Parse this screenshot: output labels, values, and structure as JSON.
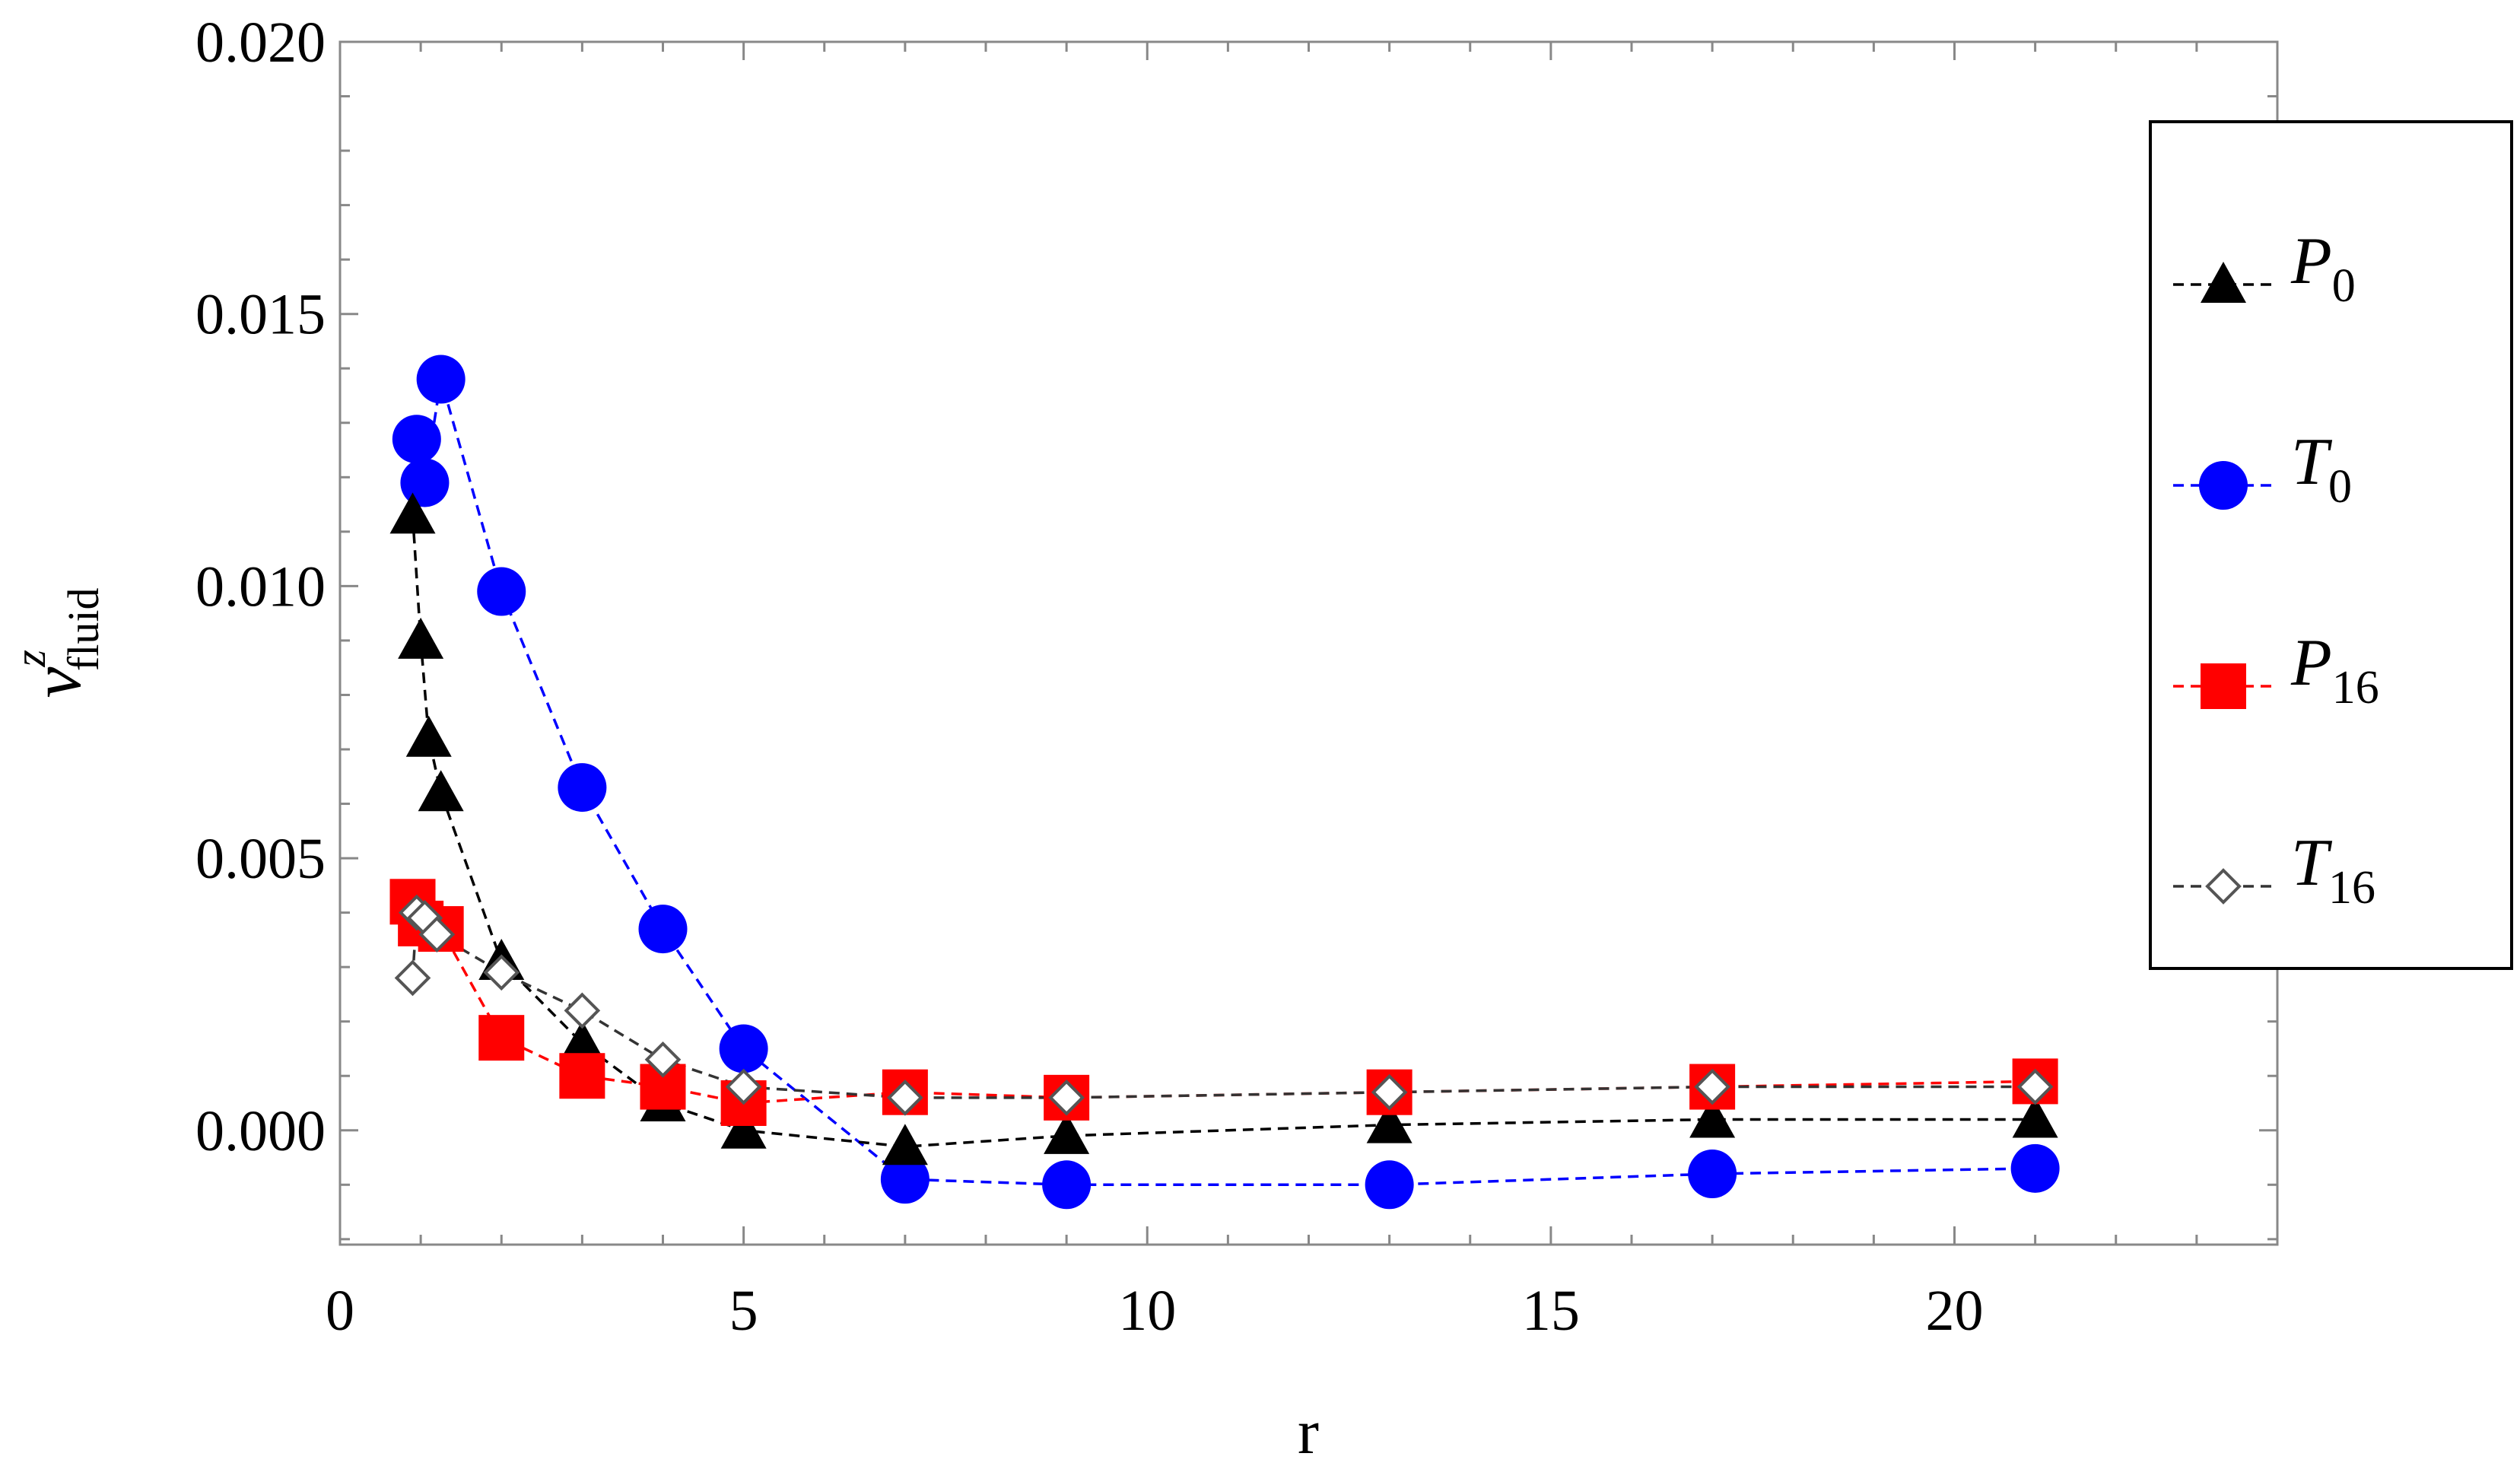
{
  "chart_data": {
    "type": "scatter",
    "xlabel": "r",
    "ylabel": {
      "base": "v",
      "superscript": "z",
      "subscript": "fluid"
    },
    "xlim": [
      0,
      24
    ],
    "ylim": [
      -0.0021,
      0.02
    ],
    "xticks": [
      0,
      5,
      10,
      15,
      20
    ],
    "yticks": [
      0.0,
      0.005,
      0.01,
      0.015,
      0.02
    ],
    "xtick_labels": [
      "0",
      "5",
      "10",
      "15",
      "20"
    ],
    "ytick_labels": [
      "0.000",
      "0.005",
      "0.010",
      "0.015",
      "0.020"
    ],
    "grid": false,
    "legend_position": "right",
    "series": [
      {
        "name": "P0",
        "label_base": "P",
        "label_sub": "0",
        "marker": "triangle",
        "color": "#000000",
        "line_color": "#000000",
        "x": [
          0.9,
          1.0,
          1.1,
          1.25,
          2,
          3,
          4,
          5,
          7,
          9,
          13,
          17,
          21
        ],
        "y": [
          0.0113,
          0.009,
          0.0072,
          0.0062,
          0.0031,
          0.0016,
          0.0005,
          0.0,
          -0.0003,
          -0.0001,
          0.0001,
          0.0002,
          0.0002
        ]
      },
      {
        "name": "T0",
        "label_base": "T",
        "label_sub": "0",
        "marker": "circle",
        "color": "#0000ff",
        "line_color": "#0000ff",
        "x": [
          0.95,
          1.05,
          1.25,
          2,
          3,
          4,
          5,
          7,
          9,
          13,
          17,
          21
        ],
        "y": [
          0.0127,
          0.0119,
          0.0138,
          0.0099,
          0.0063,
          0.0037,
          0.0015,
          -0.0009,
          -0.001,
          -0.001,
          -0.0008,
          -0.0007
        ]
      },
      {
        "name": "P16",
        "label_base": "P",
        "label_sub": "16",
        "marker": "square",
        "color": "#ff0000",
        "line_color": "#ff0000",
        "x": [
          0.9,
          1.0,
          1.25,
          2,
          3,
          4,
          5,
          7,
          9,
          13,
          17,
          21
        ],
        "y": [
          0.0042,
          0.0038,
          0.0037,
          0.0017,
          0.001,
          0.0008,
          0.0005,
          0.0007,
          0.0006,
          0.0007,
          0.0008,
          0.0009
        ]
      },
      {
        "name": "T16",
        "label_base": "T",
        "label_sub": "16",
        "marker": "diamond",
        "color": "#555555",
        "line_color": "#333333",
        "x": [
          0.9,
          0.95,
          1.05,
          1.2,
          2,
          3,
          4,
          5,
          7,
          9,
          13,
          17,
          21
        ],
        "y": [
          0.0028,
          0.004,
          0.0039,
          0.0036,
          0.0029,
          0.0022,
          0.0013,
          0.0008,
          0.0006,
          0.0006,
          0.0007,
          0.0008,
          0.0008
        ]
      }
    ]
  }
}
